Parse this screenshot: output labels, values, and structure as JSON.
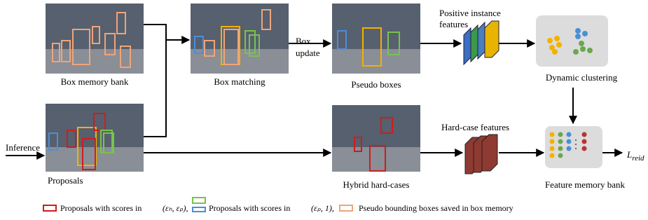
{
  "nodes": [
    {
      "label": "Box memory bank"
    },
    {
      "label": "Box matching"
    },
    {
      "label": "Pseudo boxes"
    },
    {
      "label": "Proposals"
    },
    {
      "label": "Hybrid hard-cases"
    },
    {
      "label": "Dynamic clustering"
    },
    {
      "label": "Feature memory bank"
    }
  ],
  "edges": [
    {
      "label_lines": [
        "Box",
        "update"
      ]
    },
    {
      "label": "Inference"
    }
  ],
  "features": [
    {
      "label_lines": [
        "Positive instance",
        "features"
      ]
    },
    {
      "label": "Hard-case features"
    }
  ],
  "output": {
    "main": "L",
    "sub": "reid"
  },
  "legend": [
    {
      "text": "Proposals with scores in",
      "math": "(εₕ, εₚ),"
    },
    {
      "text": "Proposals with scores in",
      "math": "(εₚ, 1),"
    },
    {
      "text": "Pseudo bounding boxes saved in box memory"
    }
  ]
}
